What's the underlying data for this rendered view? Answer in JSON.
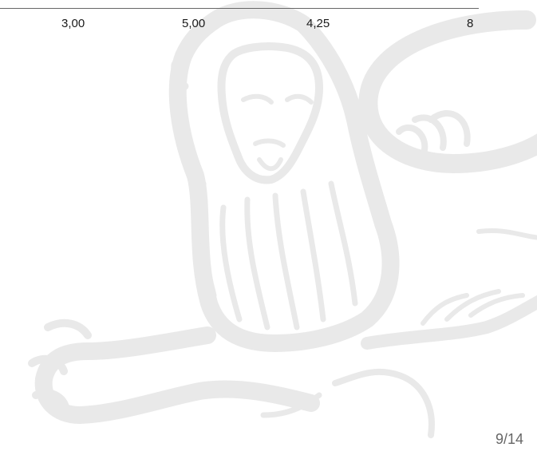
{
  "table": {
    "row": {
      "cells": [
        "3,00",
        "5,00",
        "4,25",
        "8"
      ]
    }
  },
  "footer": {
    "page_number": "9/14"
  },
  "watermark": {
    "icon": "lion-watermark-icon",
    "color": "#ececec"
  }
}
